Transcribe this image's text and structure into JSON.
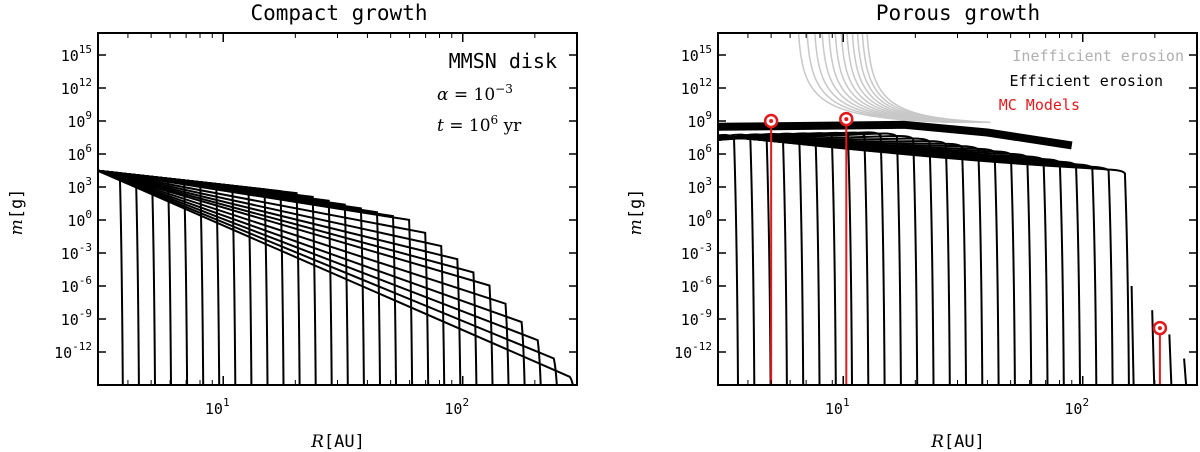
{
  "chart_data": [
    {
      "type": "line",
      "title": "Compact growth",
      "xlabel_math": "R",
      "xlabel_unit": "[AU]",
      "ylabel_math": "m",
      "ylabel_unit": "[g]",
      "x_scale": "log",
      "y_scale": "log",
      "xlim": [
        3,
        300
      ],
      "ylim": [
        1e-15,
        1e+17
      ],
      "x_ticks": [
        {
          "value": 10,
          "base": "10",
          "exp": "1"
        },
        {
          "value": 100,
          "base": "10",
          "exp": "2"
        }
      ],
      "y_ticks": [
        {
          "value": 1000000000000000.0,
          "base": "10",
          "exp": "15"
        },
        {
          "value": 1000000000000.0,
          "base": "10",
          "exp": "12"
        },
        {
          "value": 1000000000.0,
          "base": "10",
          "exp": "9"
        },
        {
          "value": 1000000.0,
          "base": "10",
          "exp": "6"
        },
        {
          "value": 1000.0,
          "base": "10",
          "exp": "3"
        },
        {
          "value": 1,
          "base": "10",
          "exp": "0"
        },
        {
          "value": 0.001,
          "base": "10",
          "exp": "-3"
        },
        {
          "value": 1e-06,
          "base": "10",
          "exp": "-6"
        },
        {
          "value": 1e-09,
          "base": "10",
          "exp": "-9"
        },
        {
          "value": 1e-12,
          "base": "10",
          "exp": "-12"
        }
      ],
      "annotations": {
        "disk": "MMSN disk",
        "alpha_sym": "α",
        "alpha_eq": " = 10",
        "alpha_exp": "−3",
        "t_sym": "t",
        "t_eq": " = 10",
        "t_exp": "6",
        "t_unit": " yr"
      },
      "series": [
        {
          "color": "#000000",
          "envelope": [
            [
              3,
              30000
            ],
            [
              20,
              300
            ],
            [
              60,
              1
            ],
            [
              130,
              1e-06
            ],
            [
              300,
              1e-15
            ]
          ],
          "curve_count": 29
        }
      ]
    },
    {
      "type": "line",
      "title": "Porous growth",
      "xlabel_math": "R",
      "xlabel_unit": "[AU]",
      "ylabel_math": "m",
      "ylabel_unit": "[g]",
      "x_scale": "log",
      "y_scale": "log",
      "xlim": [
        3,
        300
      ],
      "ylim": [
        1e-15,
        1e+17
      ],
      "x_ticks": [
        {
          "value": 10,
          "base": "10",
          "exp": "1"
        },
        {
          "value": 100,
          "base": "10",
          "exp": "2"
        }
      ],
      "y_ticks": [
        {
          "value": 1000000000000000.0,
          "base": "10",
          "exp": "15"
        },
        {
          "value": 1000000000000.0,
          "base": "10",
          "exp": "12"
        },
        {
          "value": 1000000000.0,
          "base": "10",
          "exp": "9"
        },
        {
          "value": 1000000.0,
          "base": "10",
          "exp": "6"
        },
        {
          "value": 1000.0,
          "base": "10",
          "exp": "3"
        },
        {
          "value": 1,
          "base": "10",
          "exp": "0"
        },
        {
          "value": 0.001,
          "base": "10",
          "exp": "-3"
        },
        {
          "value": 1e-06,
          "base": "10",
          "exp": "-6"
        },
        {
          "value": 1e-09,
          "base": "10",
          "exp": "-9"
        },
        {
          "value": 1e-12,
          "base": "10",
          "exp": "-12"
        }
      ],
      "legend": {
        "placement": "top-right",
        "entries": [
          {
            "name": "Inefficient erosion",
            "color": "#b0b0b0"
          },
          {
            "name": "Efficient erosion",
            "color": "#000000"
          },
          {
            "name": "MC Models",
            "color": "#e31a1c"
          }
        ]
      },
      "series": [
        {
          "name": "Inefficient erosion",
          "color": "#c8c8c8",
          "curve_count": 12
        },
        {
          "name": "Efficient erosion",
          "color": "#000000",
          "plateau_m": 300000000.0,
          "curve_count": 25
        },
        {
          "name": "MC Models",
          "color": "#e31a1c",
          "points": [
            {
              "R": 5,
              "m": 1000000000.0
            },
            {
              "R": 10.3,
              "m": 1500000000.0
            },
            {
              "R": 210,
              "m": 1.5e-10
            }
          ]
        }
      ]
    }
  ]
}
